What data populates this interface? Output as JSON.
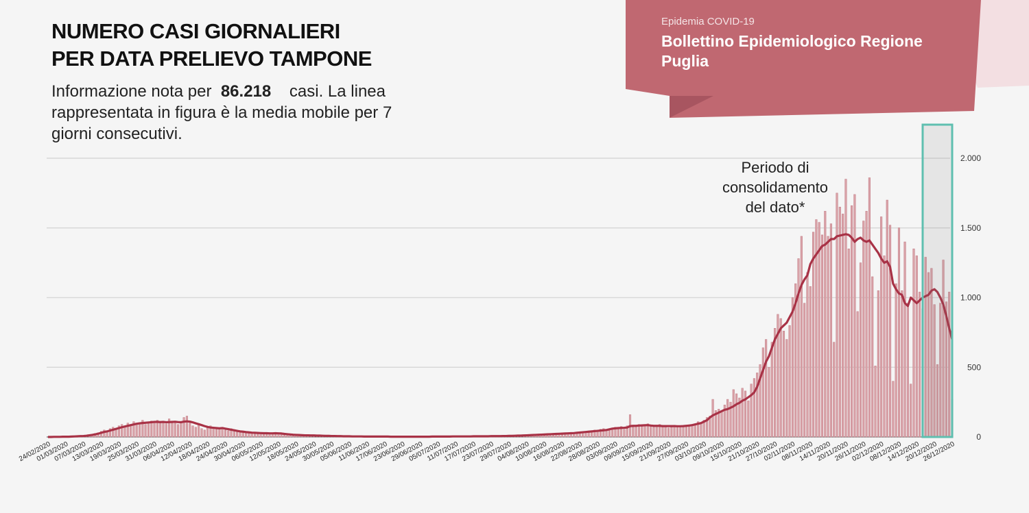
{
  "chart_data": {
    "type": "bar",
    "title_lines": [
      "NUMERO CASI GIORNALIERI",
      "PER DATA PRELIEVO TAMPONE"
    ],
    "subtitle_before": "Informazione nota per",
    "total_cases": "86.218",
    "subtitle_after": "casi. La linea rappresentata in figura è la media mobile per 7 giorni consecutivi.",
    "banner_small": "Epidemia COVID-19",
    "banner_title": "Bollettino Epidemiologico Regione Puglia",
    "annotation_lines": [
      "Periodo di",
      "consolidamento",
      "del dato*"
    ],
    "categories": [
      "24/02/2020",
      null,
      null,
      null,
      null,
      null,
      "01/03/2020",
      null,
      null,
      null,
      null,
      null,
      "07/03/2020",
      null,
      null,
      null,
      null,
      null,
      "13/03/2020",
      null,
      null,
      null,
      null,
      null,
      "19/03/2020",
      null,
      null,
      null,
      null,
      null,
      "25/03/2020",
      null,
      null,
      null,
      null,
      null,
      "31/03/2020",
      null,
      null,
      null,
      null,
      null,
      "06/04/2020",
      null,
      null,
      null,
      null,
      null,
      "12/04/2020",
      null,
      null,
      null,
      null,
      null,
      "18/04/2020",
      null,
      null,
      null,
      null,
      null,
      "24/04/2020",
      null,
      null,
      null,
      null,
      null,
      "30/04/2020",
      null,
      null,
      null,
      null,
      null,
      "06/05/2020",
      null,
      null,
      null,
      null,
      null,
      "12/05/2020",
      null,
      null,
      null,
      null,
      null,
      "18/05/2020",
      null,
      null,
      null,
      null,
      null,
      "24/05/2020",
      null,
      null,
      null,
      null,
      null,
      "30/05/2020",
      null,
      null,
      null,
      null,
      null,
      "05/06/2020",
      null,
      null,
      null,
      null,
      null,
      "11/06/2020",
      null,
      null,
      null,
      null,
      null,
      "17/06/2020",
      null,
      null,
      null,
      null,
      null,
      "23/06/2020",
      null,
      null,
      null,
      null,
      null,
      "29/06/2020",
      null,
      null,
      null,
      null,
      null,
      "05/07/2020",
      null,
      null,
      null,
      null,
      null,
      "11/07/2020",
      null,
      null,
      null,
      null,
      null,
      "17/07/2020",
      null,
      null,
      null,
      null,
      null,
      "23/07/2020",
      null,
      null,
      null,
      null,
      null,
      "29/07/2020",
      null,
      null,
      null,
      null,
      null,
      "04/08/2020",
      null,
      null,
      null,
      null,
      null,
      "10/08/2020",
      null,
      null,
      null,
      null,
      null,
      "16/08/2020",
      null,
      null,
      null,
      null,
      null,
      "22/08/2020",
      null,
      null,
      null,
      null,
      null,
      "28/08/2020",
      null,
      null,
      null,
      null,
      null,
      "03/09/2020",
      null,
      null,
      null,
      null,
      null,
      "09/09/2020",
      null,
      null,
      null,
      null,
      null,
      "15/09/2020",
      null,
      null,
      null,
      null,
      null,
      "21/09/2020",
      null,
      null,
      null,
      null,
      null,
      "27/09/2020",
      null,
      null,
      null,
      null,
      null,
      "03/10/2020",
      null,
      null,
      null,
      null,
      null,
      "09/10/2020",
      null,
      null,
      null,
      null,
      null,
      "15/10/2020",
      null,
      null,
      null,
      null,
      null,
      "21/10/2020",
      null,
      null,
      null,
      null,
      null,
      "27/10/2020",
      null,
      null,
      null,
      null,
      null,
      "02/11/2020",
      null,
      null,
      null,
      null,
      null,
      "08/11/2020",
      null,
      null,
      null,
      null,
      null,
      "14/11/2020",
      null,
      null,
      null,
      null,
      null,
      "20/11/2020",
      null,
      null,
      null,
      null,
      null,
      "26/11/2020",
      null,
      null,
      null,
      null,
      null,
      "02/12/2020",
      null,
      null,
      null,
      null,
      null,
      "08/12/2020",
      null,
      null,
      null,
      null,
      null,
      "14/12/2020",
      null,
      null,
      null,
      null,
      null,
      "20/12/2020",
      null,
      null,
      null,
      null,
      null,
      "26/12/2020"
    ],
    "series": [
      {
        "type": "bar",
        "color": "#d9a2a8",
        "values": [
          0,
          0,
          2,
          1,
          3,
          2,
          1,
          2,
          4,
          3,
          5,
          7,
          8,
          10,
          15,
          20,
          25,
          30,
          40,
          50,
          35,
          60,
          70,
          55,
          80,
          90,
          75,
          100,
          85,
          110,
          95,
          100,
          120,
          90,
          105,
          115,
          110,
          120,
          100,
          110,
          95,
          130,
          100,
          115,
          90,
          110,
          140,
          150,
          100,
          80,
          70,
          90,
          60,
          50,
          70,
          80,
          65,
          60,
          55,
          70,
          50,
          45,
          60,
          40,
          35,
          40,
          30,
          35,
          30,
          25,
          30,
          20,
          25,
          30,
          20,
          25,
          22,
          30,
          25,
          20,
          15,
          18,
          12,
          10,
          15,
          10,
          8,
          12,
          10,
          8,
          9,
          10,
          7,
          8,
          6,
          5,
          7,
          6,
          5,
          4,
          6,
          3,
          4,
          5,
          3,
          2,
          4,
          3,
          2,
          3,
          4,
          2,
          1,
          3,
          2,
          2,
          3,
          1,
          2,
          3,
          2,
          1,
          2,
          3,
          2,
          1,
          2,
          3,
          2,
          3,
          2,
          4,
          3,
          2,
          5,
          3,
          4,
          2,
          3,
          4,
          5,
          3,
          4,
          6,
          5,
          4,
          3,
          5,
          6,
          4,
          7,
          5,
          6,
          8,
          6,
          7,
          9,
          8,
          10,
          9,
          12,
          10,
          14,
          12,
          15,
          18,
          16,
          20,
          22,
          18,
          25,
          24,
          28,
          22,
          30,
          26,
          28,
          32,
          30,
          35,
          38,
          30,
          40,
          42,
          45,
          50,
          48,
          55,
          60,
          52,
          58,
          65,
          70,
          62,
          75,
          55,
          80,
          160,
          70,
          85,
          90,
          75,
          88,
          95,
          80,
          70,
          85,
          90,
          75,
          80,
          65,
          70,
          85,
          78,
          80,
          72,
          75,
          88,
          90,
          95,
          110,
          95,
          120,
          140,
          150,
          270,
          190,
          200,
          180,
          230,
          270,
          250,
          340,
          310,
          280,
          350,
          330,
          260,
          380,
          420,
          460,
          520,
          640,
          700,
          500,
          680,
          780,
          880,
          850,
          760,
          700,
          800,
          1000,
          1100,
          1280,
          1440,
          960,
          1180,
          1080,
          1470,
          1560,
          1540,
          1450,
          1620,
          1440,
          1530,
          680,
          1750,
          1650,
          1600,
          1850,
          1350,
          1660,
          1740,
          900,
          1250,
          1550,
          1620,
          1860,
          1150,
          510,
          1050,
          1580,
          1300,
          1700,
          1520,
          400,
          1100,
          1500,
          1050,
          1400,
          960,
          380,
          1350,
          1300,
          1040,
          920,
          1290,
          1180,
          1210,
          950,
          520,
          960,
          1270,
          970,
          1040,
          270
        ]
      },
      {
        "type": "line",
        "color": "#a83246",
        "values": [
          0,
          0,
          1,
          1,
          1,
          2,
          2,
          2,
          3,
          4,
          5,
          6,
          7,
          9,
          12,
          15,
          19,
          24,
          30,
          36,
          40,
          46,
          52,
          58,
          64,
          70,
          75,
          80,
          85,
          90,
          95,
          98,
          100,
          102,
          104,
          106,
          108,
          108,
          107,
          108,
          106,
          107,
          108,
          109,
          107,
          106,
          110,
          112,
          110,
          105,
          98,
          92,
          85,
          78,
          72,
          68,
          66,
          64,
          62,
          64,
          60,
          56,
          52,
          48,
          44,
          40,
          38,
          35,
          33,
          31,
          30,
          29,
          28,
          27,
          27,
          26,
          26,
          27,
          26,
          25,
          22,
          20,
          18,
          16,
          15,
          14,
          13,
          12,
          12,
          11,
          11,
          10,
          10,
          9,
          8,
          8,
          7,
          7,
          6,
          6,
          5,
          5,
          5,
          4,
          4,
          4,
          4,
          3,
          3,
          3,
          3,
          3,
          3,
          3,
          3,
          3,
          2,
          2,
          2,
          2,
          2,
          2,
          2,
          2,
          2,
          2,
          2,
          2,
          2,
          2,
          3,
          3,
          3,
          3,
          3,
          3,
          3,
          4,
          4,
          4,
          4,
          4,
          4,
          4,
          5,
          5,
          5,
          5,
          5,
          5,
          6,
          6,
          6,
          6,
          7,
          7,
          8,
          8,
          9,
          10,
          10,
          11,
          12,
          13,
          14,
          15,
          16,
          17,
          18,
          19,
          20,
          21,
          22,
          23,
          24,
          25,
          26,
          27,
          28,
          30,
          32,
          34,
          36,
          38,
          40,
          42,
          44,
          46,
          48,
          50,
          55,
          60,
          62,
          64,
          65,
          66,
          68,
          78,
          80,
          80,
          82,
          83,
          84,
          85,
          82,
          80,
          80,
          80,
          78,
          78,
          78,
          78,
          78,
          77,
          77,
          78,
          80,
          82,
          85,
          90,
          95,
          100,
          110,
          120,
          140,
          155,
          165,
          175,
          185,
          195,
          200,
          210,
          220,
          235,
          245,
          260,
          270,
          285,
          300,
          320,
          360,
          420,
          480,
          540,
          580,
          640,
          700,
          740,
          780,
          800,
          820,
          860,
          900,
          960,
          1030,
          1090,
          1130,
          1160,
          1240,
          1280,
          1310,
          1340,
          1370,
          1380,
          1400,
          1420,
          1420,
          1440,
          1445,
          1450,
          1455,
          1450,
          1430,
          1400,
          1420,
          1430,
          1410,
          1400,
          1410,
          1380,
          1350,
          1320,
          1280,
          1250,
          1260,
          1220,
          1100,
          1060,
          1030,
          1020,
          960,
          940,
          1000,
          980,
          960,
          980,
          1000,
          1010,
          1020,
          1050,
          1060,
          1040,
          1000,
          950,
          870,
          780,
          700
        ]
      }
    ],
    "ylim": [
      0,
      2000
    ],
    "yticks": [
      0,
      500,
      {
        "value": 1000,
        "label": "1.000"
      },
      {
        "value": 1500,
        "label": "1.500"
      },
      {
        "value": 2000,
        "label": "2.000"
      }
    ],
    "grid": true
  }
}
